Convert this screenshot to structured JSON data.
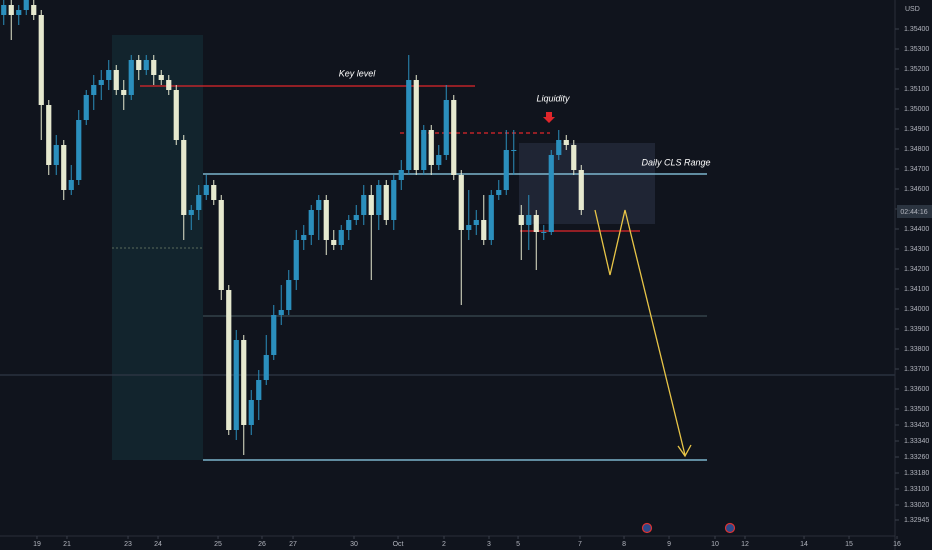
{
  "chart_data": {
    "type": "candlestick",
    "currency": "USD",
    "countdown": "02:44:16",
    "annotations": {
      "key_level": "Key level",
      "liquidity": "Liquidity",
      "range": "Daily CLS Range"
    },
    "up_color": "#2b8fbd",
    "down_color": "#e6e9cf",
    "x": [
      0,
      1,
      2,
      3,
      4,
      5,
      6,
      7,
      8,
      9,
      10,
      11,
      12,
      13,
      14,
      15,
      16,
      17,
      18,
      19,
      20,
      21,
      22,
      23,
      24,
      25,
      26,
      27,
      28,
      29,
      30,
      31,
      32,
      33,
      34,
      35,
      36,
      37,
      38,
      39,
      40,
      41,
      42,
      43,
      44,
      45,
      46,
      47,
      48,
      49,
      50,
      51,
      52,
      53,
      54,
      55,
      56,
      57,
      58,
      59,
      60,
      61,
      62,
      63,
      64,
      65,
      66,
      67,
      68,
      69,
      70,
      71,
      72,
      73,
      74,
      75,
      76,
      77
    ],
    "open": [
      1.3547,
      1.3552,
      1.3547,
      1.35495,
      1.3552,
      1.3547,
      1.3502,
      1.3472,
      1.3482,
      1.34595,
      1.34645,
      1.34945,
      1.3507,
      1.3512,
      1.35145,
      1.35195,
      1.35095,
      1.3507,
      1.35245,
      1.35195,
      1.35245,
      1.3517,
      1.35145,
      1.35095,
      1.34845,
      1.3447,
      1.34495,
      1.3457,
      1.3462,
      1.34545,
      1.34095,
      1.33395,
      1.33845,
      1.3342,
      1.33545,
      1.33645,
      1.3377,
      1.3397,
      1.33995,
      1.34145,
      1.34345,
      1.3437,
      1.34495,
      1.34545,
      1.34345,
      1.3432,
      1.34395,
      1.34445,
      1.3447,
      1.3457,
      1.3447,
      1.3462,
      1.34445,
      1.34645,
      1.34695,
      1.35145,
      1.34695,
      1.34895,
      1.3472,
      1.3477,
      1.35045,
      1.3467,
      1.34395,
      1.3442,
      1.34445,
      1.34345,
      1.3457,
      1.34595,
      1.34795,
      1.3447,
      1.3442,
      1.3447,
      1.34385,
      1.34385,
      1.3477,
      1.34845,
      1.3482,
      1.34695
    ],
    "high": [
      1.35545,
      1.35545,
      1.3552,
      1.35545,
      1.35545,
      1.35495,
      1.35045,
      1.3487,
      1.34845,
      1.3472,
      1.34995,
      1.35095,
      1.3517,
      1.35195,
      1.35245,
      1.3522,
      1.35145,
      1.3527,
      1.3527,
      1.3527,
      1.3527,
      1.35195,
      1.3517,
      1.3512,
      1.3487,
      1.3452,
      1.3462,
      1.3467,
      1.34645,
      1.3457,
      1.3412,
      1.33895,
      1.3387,
      1.33595,
      1.33695,
      1.3387,
      1.3402,
      1.3412,
      1.34195,
      1.34395,
      1.3442,
      1.3452,
      1.3457,
      1.3457,
      1.34395,
      1.3442,
      1.3447,
      1.3452,
      1.3462,
      1.3462,
      1.34645,
      1.34645,
      1.3467,
      1.34745,
      1.3527,
      1.3517,
      1.3492,
      1.3492,
      1.3482,
      1.3512,
      1.3507,
      1.34695,
      1.34595,
      1.34495,
      1.3457,
      1.34595,
      1.34645,
      1.34895,
      1.34895,
      1.3452,
      1.3457,
      1.34495,
      1.3442,
      1.34795,
      1.34895,
      1.3487,
      1.34845,
      1.3472
    ],
    "low": [
      1.3542,
      1.35345,
      1.3542,
      1.3547,
      1.35445,
      1.34845,
      1.3467,
      1.3467,
      1.34545,
      1.3457,
      1.3462,
      1.3492,
      1.34995,
      1.35045,
      1.35095,
      1.3507,
      1.34995,
      1.35045,
      1.35145,
      1.3517,
      1.3512,
      1.3512,
      1.3507,
      1.3482,
      1.34345,
      1.34395,
      1.34445,
      1.34545,
      1.3452,
      1.34045,
      1.3337,
      1.33345,
      1.3327,
      1.3337,
      1.33445,
      1.3362,
      1.33745,
      1.3392,
      1.3397,
      1.34095,
      1.34295,
      1.3432,
      1.34345,
      1.3427,
      1.34295,
      1.34295,
      1.34345,
      1.3442,
      1.3442,
      1.34145,
      1.34395,
      1.3442,
      1.34395,
      1.34595,
      1.3467,
      1.3467,
      1.3467,
      1.3467,
      1.34695,
      1.34745,
      1.34645,
      1.3402,
      1.34345,
      1.3437,
      1.3432,
      1.3432,
      1.34545,
      1.3457,
      1.3467,
      1.34245,
      1.34295,
      1.34195,
      1.34345,
      1.3437,
      1.34745,
      1.34795,
      1.3467,
      1.3447
    ],
    "close": [
      1.3552,
      1.3547,
      1.35495,
      1.35545,
      1.3547,
      1.3502,
      1.3472,
      1.3482,
      1.34595,
      1.34645,
      1.34945,
      1.3507,
      1.3512,
      1.35145,
      1.35195,
      1.35095,
      1.3507,
      1.35245,
      1.35195,
      1.35245,
      1.3517,
      1.35145,
      1.35095,
      1.34845,
      1.3447,
      1.34495,
      1.3457,
      1.3462,
      1.34545,
      1.34095,
      1.33395,
      1.33845,
      1.3342,
      1.33545,
      1.33645,
      1.3377,
      1.3397,
      1.33995,
      1.34145,
      1.34345,
      1.3437,
      1.34495,
      1.34545,
      1.34345,
      1.3432,
      1.34395,
      1.34445,
      1.3447,
      1.3457,
      1.3447,
      1.3462,
      1.34445,
      1.34645,
      1.34695,
      1.35145,
      1.34695,
      1.34895,
      1.3472,
      1.3477,
      1.35045,
      1.3467,
      1.34395,
      1.3442,
      1.34445,
      1.34345,
      1.3457,
      1.34595,
      1.34795,
      1.34795,
      1.3442,
      1.3447,
      1.34385,
      1.34385,
      1.3477,
      1.34845,
      1.3482,
      1.34695,
      1.34495
    ],
    "levels": [
      {
        "value": 1.35115,
        "color": "#e0262b"
      },
      {
        "value": 1.3488,
        "color": "#e0262b"
      },
      {
        "value": 1.34675,
        "color": "#8fd3ee"
      },
      {
        "value": 1.3439,
        "color": "#e0262b"
      },
      {
        "value": 1.33965,
        "color": "#3a4a52"
      },
      {
        "value": 1.3367,
        "color": "#2f3846"
      },
      {
        "value": 1.33245,
        "color": "#8fd3ee"
      }
    ],
    "xlim": [
      -0.5,
      118.83
    ],
    "ylim": [
      1.3287,
      1.35545
    ],
    "xticks": [
      {
        "value": 4.43,
        "label": "19"
      },
      {
        "value": 8.43,
        "label": "21"
      },
      {
        "value": 16.57,
        "label": "23"
      },
      {
        "value": 20.57,
        "label": "24"
      },
      {
        "value": 28.57,
        "label": "25"
      },
      {
        "value": 34.43,
        "label": "26"
      },
      {
        "value": 38.57,
        "label": "27"
      },
      {
        "value": 46.7,
        "label": "30"
      },
      {
        "value": 52.57,
        "label": "Oct"
      },
      {
        "value": 58.7,
        "label": "2"
      },
      {
        "value": 64.7,
        "label": "3"
      },
      {
        "value": 68.57,
        "label": "5"
      },
      {
        "value": 76.83,
        "label": "7"
      },
      {
        "value": 82.7,
        "label": "8"
      },
      {
        "value": 88.7,
        "label": "9"
      },
      {
        "value": 94.83,
        "label": "10"
      },
      {
        "value": 98.83,
        "label": "12"
      },
      {
        "value": 106.7,
        "label": "14"
      },
      {
        "value": 112.7,
        "label": "15"
      },
      {
        "value": 119.1,
        "label": "16"
      }
    ],
    "yticks": [
      {
        "value": 1.354,
        "label": "1.35400"
      },
      {
        "value": 1.353,
        "label": "1.35300"
      },
      {
        "value": 1.352,
        "label": "1.35200"
      },
      {
        "value": 1.351,
        "label": "1.35100"
      },
      {
        "value": 1.35,
        "label": "1.35000"
      },
      {
        "value": 1.349,
        "label": "1.34900"
      },
      {
        "value": 1.348,
        "label": "1.34800"
      },
      {
        "value": 1.347,
        "label": "1.34700"
      },
      {
        "value": 1.346,
        "label": "1.34600"
      },
      {
        "value": 1.345,
        "label": "1.34500"
      },
      {
        "value": 1.344,
        "label": "1.34400"
      },
      {
        "value": 1.343,
        "label": "1.34300"
      },
      {
        "value": 1.342,
        "label": "1.34200"
      },
      {
        "value": 1.341,
        "label": "1.34100"
      },
      {
        "value": 1.34,
        "label": "1.34000"
      },
      {
        "value": 1.339,
        "label": "1.33900"
      },
      {
        "value": 1.338,
        "label": "1.33800"
      },
      {
        "value": 1.337,
        "label": "1.33700"
      },
      {
        "value": 1.336,
        "label": "1.33600"
      },
      {
        "value": 1.335,
        "label": "1.33500"
      },
      {
        "value": 1.3342,
        "label": "1.33420"
      },
      {
        "value": 1.3334,
        "label": "1.33340"
      },
      {
        "value": 1.3326,
        "label": "1.33260"
      },
      {
        "value": 1.3318,
        "label": "1.33180"
      },
      {
        "value": 1.331,
        "label": "1.33100"
      },
      {
        "value": 1.3302,
        "label": "1.33020"
      },
      {
        "value": 1.32945,
        "label": "1.32945"
      }
    ]
  }
}
